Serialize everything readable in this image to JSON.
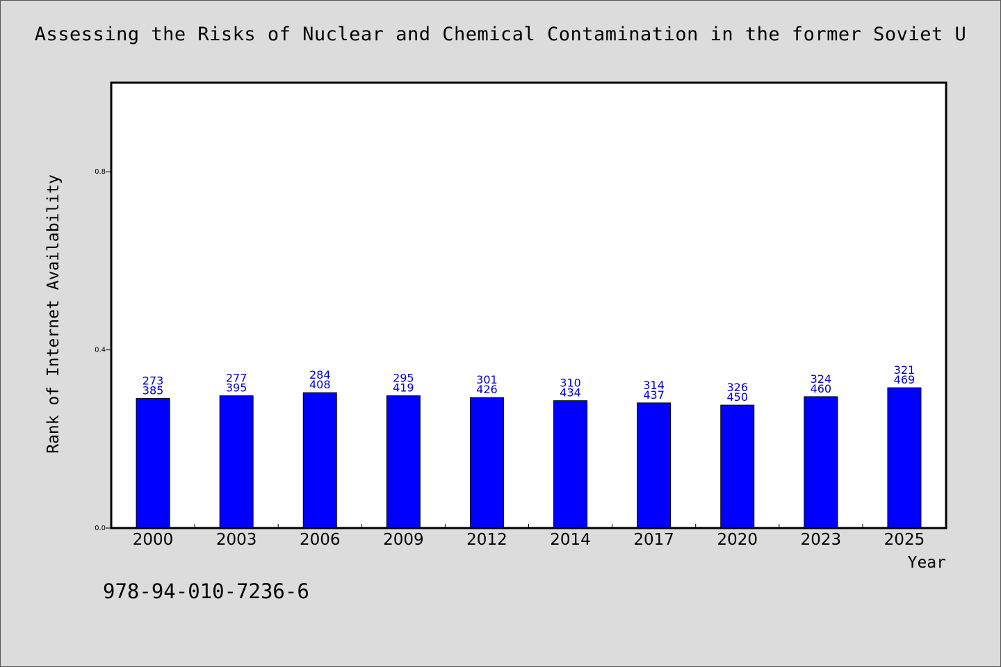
{
  "title": "Assessing the Risks of Nuclear and Chemical Contamination in the former Soviet U",
  "isbn": "978-94-010-7236-6",
  "colors": {
    "background": "#dcdcdc",
    "plot_bg": "#ffffff",
    "bar_fill": "#0000ff",
    "bar_stroke": "#000000",
    "label_color": "#0000cc"
  },
  "chart_data": {
    "type": "bar",
    "xlabel": "Year",
    "ylabel": "Rank of Internet Availability",
    "ylim": [
      0,
      1.0
    ],
    "yticks": [
      0.0,
      0.4,
      0.8
    ],
    "ytick_labels": [
      "0.0",
      "0.4",
      "0.8"
    ],
    "grid": false,
    "categories": [
      "2000",
      "2003",
      "2006",
      "2009",
      "2012",
      "2014",
      "2017",
      "2020",
      "2023",
      "2025"
    ],
    "values": [
      0.291,
      0.297,
      0.304,
      0.297,
      0.293,
      0.286,
      0.281,
      0.276,
      0.295,
      0.315
    ],
    "data_labels": [
      [
        "273",
        "385"
      ],
      [
        "277",
        "395"
      ],
      [
        "284",
        "408"
      ],
      [
        "295",
        "419"
      ],
      [
        "301",
        "426"
      ],
      [
        "310",
        "434"
      ],
      [
        "314",
        "437"
      ],
      [
        "326",
        "450"
      ],
      [
        "324",
        "460"
      ],
      [
        "321",
        "469"
      ]
    ]
  }
}
